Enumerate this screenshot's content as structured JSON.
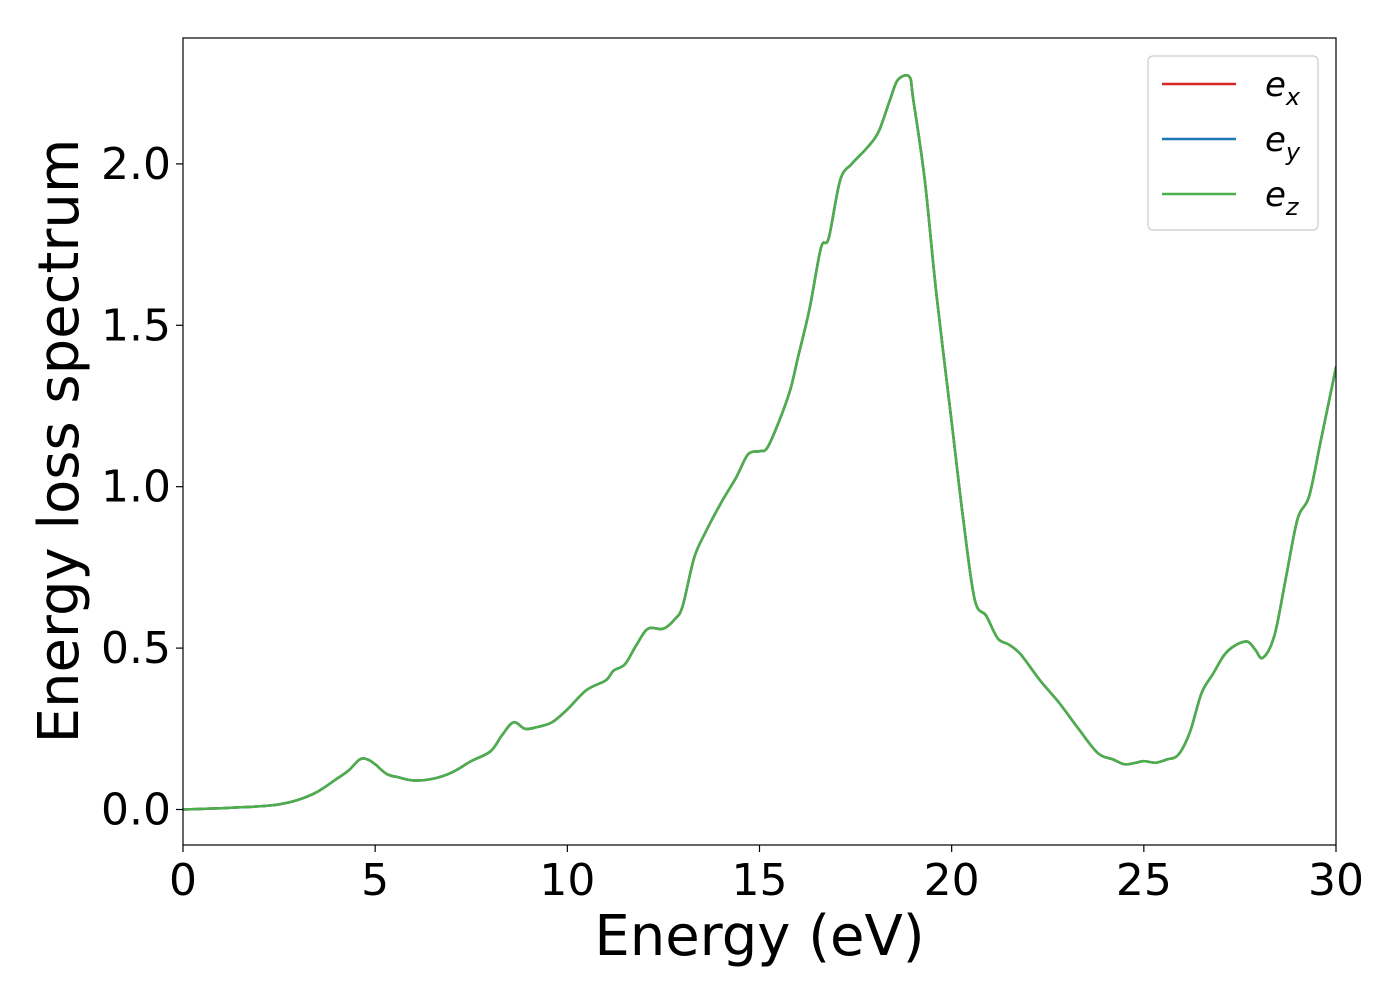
{
  "chart_data": {
    "type": "line",
    "xlabel": "Energy (eV)",
    "ylabel": "Energy loss spectrum",
    "xlim": [
      0,
      30
    ],
    "ylim": [
      -0.11,
      2.39
    ],
    "xticks": [
      0,
      5,
      10,
      15,
      20,
      25,
      30
    ],
    "xtick_labels": [
      "0",
      "5",
      "10",
      "15",
      "20",
      "25",
      "30"
    ],
    "yticks": [
      0.0,
      0.5,
      1.0,
      1.5,
      2.0
    ],
    "ytick_labels": [
      "0.0",
      "0.5",
      "1.0",
      "1.5",
      "2.0"
    ],
    "grid": false,
    "legend_position": "top-right",
    "x": [
      0,
      0.5,
      1,
      1.5,
      2,
      2.5,
      3,
      3.5,
      4,
      4.3,
      4.6,
      4.8,
      5.0,
      5.3,
      5.6,
      6.0,
      6.5,
      7.0,
      7.5,
      8.0,
      8.3,
      8.6,
      8.9,
      9.2,
      9.6,
      10.0,
      10.5,
      11.0,
      11.2,
      11.5,
      11.8,
      12.1,
      12.5,
      12.8,
      13.0,
      13.3,
      13.6,
      14.0,
      14.4,
      14.7,
      15.0,
      15.2,
      15.5,
      15.8,
      16.0,
      16.3,
      16.6,
      16.8,
      17.1,
      17.4,
      17.8,
      18.1,
      18.4,
      18.6,
      18.9,
      19.0,
      19.3,
      19.6,
      20.0,
      20.3,
      20.6,
      20.9,
      21.2,
      21.5,
      21.8,
      22.3,
      22.8,
      23.3,
      23.8,
      24.2,
      24.5,
      24.8,
      25.0,
      25.3,
      25.6,
      25.9,
      26.2,
      26.5,
      26.8,
      27.1,
      27.4,
      27.7,
      27.9,
      28.1,
      28.4,
      28.7,
      29.0,
      29.3,
      29.6,
      30.0
    ],
    "series": [
      {
        "name": "e_x",
        "label_base": "e",
        "label_sub": "x",
        "color": "#d62728",
        "values": [
          0.0,
          0.002,
          0.004,
          0.007,
          0.01,
          0.016,
          0.03,
          0.055,
          0.095,
          0.12,
          0.155,
          0.155,
          0.14,
          0.11,
          0.1,
          0.09,
          0.095,
          0.115,
          0.15,
          0.18,
          0.23,
          0.27,
          0.25,
          0.255,
          0.27,
          0.31,
          0.37,
          0.4,
          0.43,
          0.45,
          0.51,
          0.56,
          0.56,
          0.59,
          0.63,
          0.78,
          0.86,
          0.95,
          1.03,
          1.1,
          1.11,
          1.12,
          1.2,
          1.3,
          1.4,
          1.55,
          1.74,
          1.77,
          1.95,
          2.0,
          2.05,
          2.1,
          2.2,
          2.26,
          2.27,
          2.2,
          1.95,
          1.6,
          1.2,
          0.9,
          0.65,
          0.6,
          0.53,
          0.51,
          0.48,
          0.4,
          0.33,
          0.25,
          0.175,
          0.155,
          0.14,
          0.145,
          0.15,
          0.145,
          0.155,
          0.17,
          0.24,
          0.36,
          0.42,
          0.48,
          0.51,
          0.52,
          0.495,
          0.47,
          0.54,
          0.72,
          0.9,
          0.97,
          1.14,
          1.37
        ]
      },
      {
        "name": "e_y",
        "label_base": "e",
        "label_sub": "y",
        "color": "#1f77b4",
        "values": [
          0.0,
          0.002,
          0.004,
          0.007,
          0.01,
          0.016,
          0.03,
          0.055,
          0.095,
          0.12,
          0.155,
          0.155,
          0.14,
          0.11,
          0.1,
          0.09,
          0.095,
          0.115,
          0.15,
          0.18,
          0.23,
          0.27,
          0.25,
          0.255,
          0.27,
          0.31,
          0.37,
          0.4,
          0.43,
          0.45,
          0.51,
          0.56,
          0.56,
          0.59,
          0.63,
          0.78,
          0.86,
          0.95,
          1.03,
          1.1,
          1.11,
          1.12,
          1.2,
          1.3,
          1.4,
          1.55,
          1.74,
          1.77,
          1.95,
          2.0,
          2.05,
          2.1,
          2.2,
          2.26,
          2.27,
          2.2,
          1.95,
          1.6,
          1.2,
          0.9,
          0.65,
          0.6,
          0.53,
          0.51,
          0.48,
          0.4,
          0.33,
          0.25,
          0.175,
          0.155,
          0.14,
          0.145,
          0.15,
          0.145,
          0.155,
          0.17,
          0.24,
          0.36,
          0.42,
          0.48,
          0.51,
          0.52,
          0.495,
          0.47,
          0.54,
          0.72,
          0.9,
          0.97,
          1.14,
          1.37
        ]
      },
      {
        "name": "e_z",
        "label_base": "e",
        "label_sub": "z",
        "color": "#4daf4a",
        "values": [
          0.0,
          0.002,
          0.004,
          0.007,
          0.01,
          0.016,
          0.03,
          0.055,
          0.095,
          0.12,
          0.155,
          0.155,
          0.14,
          0.11,
          0.1,
          0.09,
          0.095,
          0.115,
          0.15,
          0.18,
          0.23,
          0.27,
          0.25,
          0.255,
          0.27,
          0.31,
          0.37,
          0.4,
          0.43,
          0.45,
          0.51,
          0.56,
          0.56,
          0.59,
          0.63,
          0.78,
          0.86,
          0.95,
          1.03,
          1.1,
          1.11,
          1.12,
          1.2,
          1.3,
          1.4,
          1.55,
          1.74,
          1.77,
          1.95,
          2.0,
          2.05,
          2.1,
          2.2,
          2.26,
          2.27,
          2.2,
          1.95,
          1.6,
          1.2,
          0.9,
          0.65,
          0.6,
          0.53,
          0.51,
          0.48,
          0.4,
          0.33,
          0.25,
          0.175,
          0.155,
          0.14,
          0.145,
          0.15,
          0.145,
          0.155,
          0.17,
          0.24,
          0.36,
          0.42,
          0.48,
          0.51,
          0.52,
          0.495,
          0.47,
          0.54,
          0.72,
          0.9,
          0.97,
          1.14,
          1.37
        ]
      }
    ]
  }
}
